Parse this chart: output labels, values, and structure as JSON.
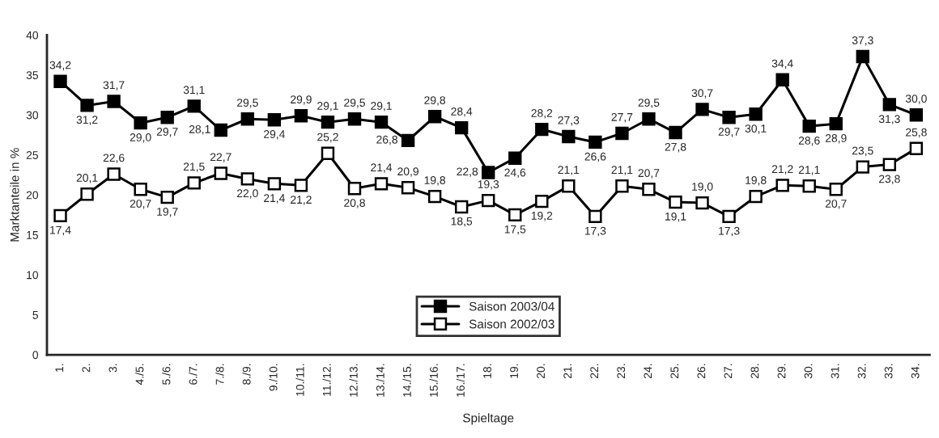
{
  "chart_data": {
    "type": "line",
    "xlabel": "Spieltage",
    "ylabel": "Marktanteile in %",
    "categories": [
      "1.",
      "2.",
      "3.",
      "4./5.",
      "5./6.",
      "6./7.",
      "7./8.",
      "8./9.",
      "9./10.",
      "10./11.",
      "11./12.",
      "12./13.",
      "13./14.",
      "14./15.",
      "15./16.",
      "16./17.",
      "18.",
      "19.",
      "20.",
      "21.",
      "22.",
      "23.",
      "24.",
      "25.",
      "26.",
      "27.",
      "28.",
      "29.",
      "30.",
      "31.",
      "32.",
      "33.",
      "34."
    ],
    "series": [
      {
        "name": "Saison 2003/04",
        "color": "#000000",
        "values": [
          34.2,
          31.2,
          31.7,
          29.0,
          29.7,
          31.1,
          28.1,
          29.5,
          29.4,
          29.9,
          29.1,
          29.5,
          29.1,
          26.8,
          29.8,
          28.4,
          22.8,
          24.6,
          28.2,
          27.3,
          26.6,
          27.7,
          29.5,
          27.8,
          30.7,
          29.7,
          30.1,
          34.4,
          28.6,
          28.9,
          37.3,
          31.3,
          30.0
        ],
        "value_labels": [
          "34,2",
          "31,2",
          "31,7",
          "29,0",
          "29,7",
          "31,1",
          "28,1",
          "29,5",
          "29,4",
          "29,9",
          "29,1",
          "29,5",
          "29,1",
          "26,8",
          "29,8",
          "28,4",
          "22,8",
          "24,6",
          "28,2",
          "27,3",
          "26,6",
          "27,7",
          "29,5",
          "27,8",
          "30,7",
          "29,7",
          "30,1",
          "34,4",
          "28,6",
          "28,9",
          "37,3",
          "31,3",
          "30,0"
        ]
      },
      {
        "name": "Saison 2002/03",
        "color": "#000000",
        "values": [
          17.4,
          20.1,
          22.6,
          20.7,
          19.7,
          21.5,
          22.7,
          22.0,
          21.4,
          21.2,
          25.2,
          20.8,
          21.4,
          20.9,
          19.8,
          18.5,
          19.3,
          17.5,
          19.2,
          21.1,
          17.3,
          21.1,
          20.7,
          19.1,
          19.0,
          17.3,
          19.8,
          21.2,
          21.1,
          20.7,
          23.5,
          23.8,
          25.8
        ],
        "value_labels": [
          "17,4",
          "20,1",
          "22,6",
          "20,7",
          "19,7",
          "21,5",
          "22,7",
          "22,0",
          "21,4",
          "21,2",
          "25,2",
          "20,8",
          "21,4",
          "20,9",
          "19,8",
          "18,5",
          "19,3",
          "17,5",
          "19,2",
          "21,1",
          "17,3",
          "21,1",
          "20,7",
          "19,1",
          "19,0",
          "17,3",
          "19,8",
          "21,2",
          "21,1",
          "20,7",
          "23,5",
          "23,8",
          "25,8"
        ]
      }
    ],
    "ylim": [
      0,
      40
    ],
    "yticks": [
      0,
      5,
      10,
      15,
      20,
      25,
      30,
      35,
      40
    ],
    "marker": "square",
    "line_style": "solid",
    "grid": false,
    "legend": "bottom"
  }
}
